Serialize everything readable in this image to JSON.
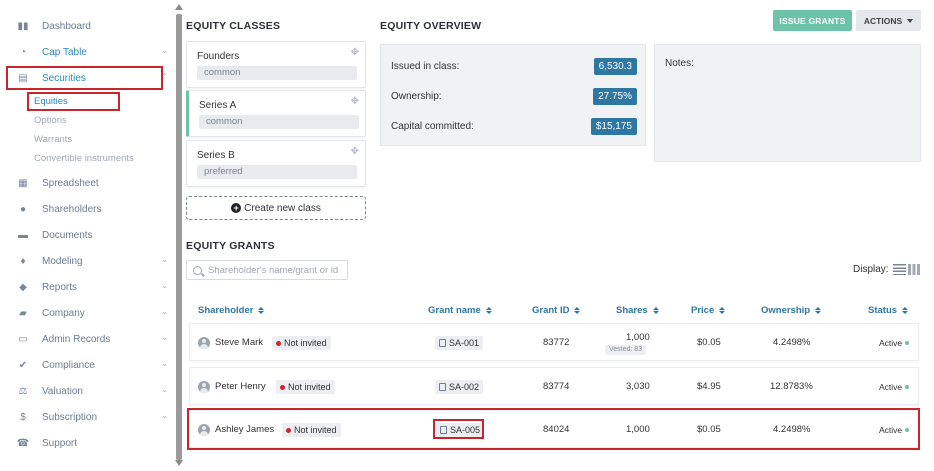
{
  "sidebar": {
    "items": [
      {
        "label": "Dashboard"
      },
      {
        "label": "Cap Table"
      },
      {
        "label": "Securities"
      },
      {
        "label": "Spreadsheet"
      },
      {
        "label": "Shareholders"
      },
      {
        "label": "Documents"
      },
      {
        "label": "Modeling"
      },
      {
        "label": "Reports"
      },
      {
        "label": "Company"
      },
      {
        "label": "Admin Records"
      },
      {
        "label": "Compliance"
      },
      {
        "label": "Valuation"
      },
      {
        "label": "Subscription"
      },
      {
        "label": "Support"
      }
    ],
    "securities_sub": [
      "Equities",
      "Options",
      "Warrants",
      "Convertible instruments"
    ]
  },
  "classes": {
    "title": "EQUITY CLASSES",
    "items": [
      {
        "name": "Founders",
        "type": "common"
      },
      {
        "name": "Series A",
        "type": "common"
      },
      {
        "name": "Series B",
        "type": "preferred"
      }
    ],
    "create_label": "Create new class"
  },
  "overview": {
    "title": "EQUITY OVERVIEW",
    "issued_label": "Issued in class:",
    "issued_value": "6,530.3",
    "ownership_label": "Ownership:",
    "ownership_value": "27.75%",
    "capital_label": "Capital committed:",
    "capital_value": "$15,175",
    "notes_label": "Notes:"
  },
  "toolbar": {
    "issue_label": "ISSUE GRANTS",
    "actions_label": "ACTIONS"
  },
  "grants": {
    "title": "EQUITY GRANTS",
    "search_placeholder": "Shareholder's name/grant or id",
    "display_label": "Display:",
    "columns": [
      "Shareholder",
      "Grant name",
      "Grant ID",
      "Shares",
      "Price",
      "Ownership",
      "Status"
    ],
    "rows": [
      {
        "name": "Steve Mark",
        "invite": "Not invited",
        "grant": "SA-001",
        "grant_id": "83772",
        "shares": "1,000",
        "vested": "Vested: 83",
        "price": "$0.05",
        "ownership": "4.2498%",
        "status": "Active"
      },
      {
        "name": "Peter Henry",
        "invite": "Not invited",
        "grant": "SA-002",
        "grant_id": "83774",
        "shares": "3,030",
        "vested": "",
        "price": "$4.95",
        "ownership": "12.8783%",
        "status": "Active"
      },
      {
        "name": "Ashley James",
        "invite": "Not invited",
        "grant": "SA-005",
        "grant_id": "84024",
        "shares": "1,000",
        "vested": "",
        "price": "$0.05",
        "ownership": "4.2498%",
        "status": "Active"
      }
    ]
  },
  "colors": {
    "accent": "#2f77a3",
    "green": "#6cc3a8",
    "highlight": "#c9252d"
  }
}
